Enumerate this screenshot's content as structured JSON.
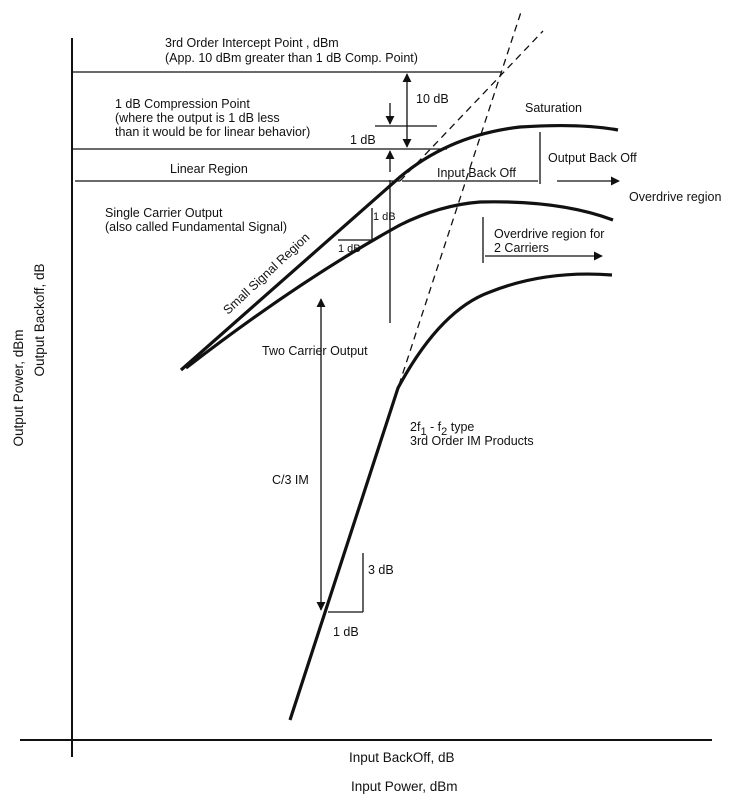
{
  "axes": {
    "x_label_top": "Input BackOff, dB",
    "x_label_bottom": "Input Power, dBm",
    "y_label_outer": "Output Power, dBm",
    "y_label_inner": "Output Backoff, dB"
  },
  "labels": {
    "ip3_line1": "3rd Order Intercept Point , dBm",
    "ip3_line2": "(App. 10 dBm greater than 1 dB Comp. Point)",
    "ten_db": "10 dB",
    "p1db_line1": "1 dB Compression Point",
    "p1db_line2": "(where the output is 1 dB less",
    "p1db_line3": "than it would be for linear behavior)",
    "one_db_comp": "1 dB",
    "saturation": "Saturation",
    "linear_region": "Linear Region",
    "input_back_off": "Input Back Off",
    "output_back_off": "Output Back Off",
    "overdrive_region": "Overdrive region",
    "single_carrier_line1": "Single Carrier Output",
    "single_carrier_line2": "(also called Fundamental Signal)",
    "slope_1db_v": "1 dB",
    "slope_1db_h": "1 dB",
    "overdrive_2c_line1": "Overdrive region for",
    "overdrive_2c_line2": "2 Carriers",
    "small_signal_region": "Small Signal Region",
    "two_carrier_output": "Two Carrier Output",
    "im_line1_a": "2f",
    "im_line1_sub1": "1",
    "im_line1_b": " - f",
    "im_line1_sub2": "2",
    "im_line1_c": " type",
    "im_line2": "3rd Order IM Products",
    "c3im": "C/3 IM",
    "three_db": "3 dB",
    "one_db_bottom": "1 dB"
  }
}
